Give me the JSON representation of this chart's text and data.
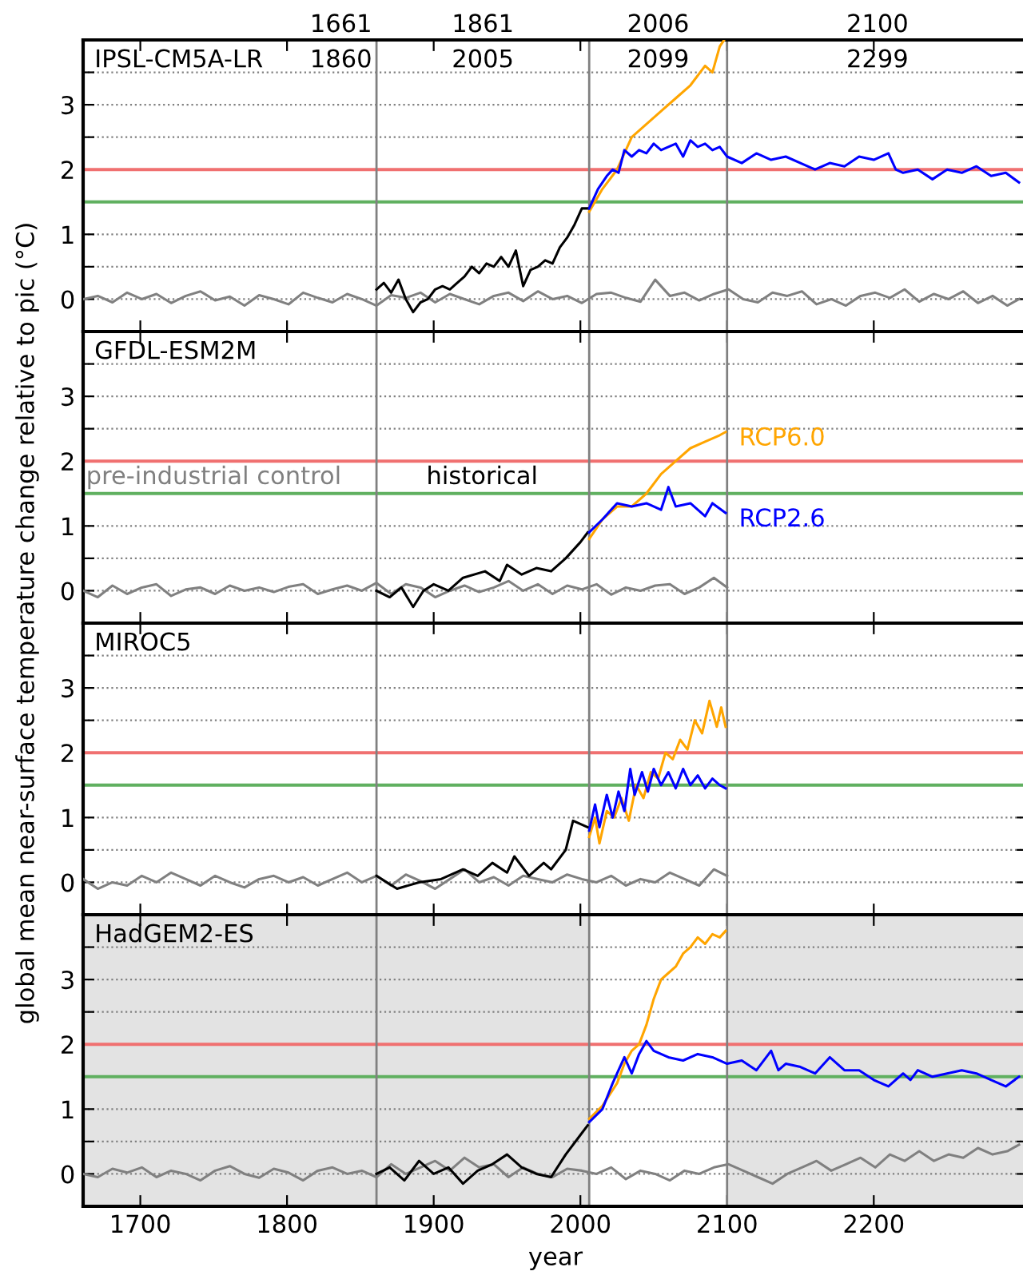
{
  "chart_data": [
    {
      "type": "line",
      "title": "IPSL-CM5A-LR",
      "ylabel": "global mean near-surface temperature change relative to pic (°C)",
      "annotations": [
        "1661",
        "1861",
        "2006",
        "2100",
        "1860",
        "2005",
        "2099",
        "2299"
      ],
      "xlim": [
        1661,
        2305
      ],
      "xticks": [
        1700,
        1800,
        1900,
        2000,
        2100,
        2200
      ],
      "ylim": [
        -0.5,
        4.0
      ],
      "yticks": [
        0,
        {
          "value": 0.5,
          "label": null
        },
        1,
        {
          "value": 1.5,
          "label": null
        },
        2,
        {
          "value": 2.5,
          "label": null
        },
        3,
        {
          "value": 3.5,
          "label": null
        }
      ],
      "grid": "y",
      "tick_labels": "y",
      "line_style": "solid",
      "ref_lines": [
        {
          "axis": "y",
          "value": 2,
          "color": "#f07070"
        },
        {
          "axis": "y",
          "value": 1.5,
          "color": "#60b060"
        },
        {
          "axis": "x",
          "value": 1861,
          "color": "#808080"
        },
        {
          "axis": "x",
          "value": 2006,
          "color": "#808080"
        },
        {
          "axis": "x",
          "value": 2100,
          "color": "#808080"
        }
      ],
      "series": [
        {
          "color": "#808080",
          "x": [
            1661,
            1671,
            1681,
            1691,
            1701,
            1711,
            1721,
            1731,
            1741,
            1751,
            1761,
            1771,
            1781,
            1791,
            1801,
            1811,
            1821,
            1831,
            1841,
            1851,
            1861,
            1871,
            1881,
            1891,
            1901,
            1911,
            1921,
            1931,
            1941,
            1951,
            1961,
            1971,
            1981,
            1991,
            2001,
            2011,
            2021,
            2031,
            2041,
            2051,
            2061,
            2071,
            2081,
            2091,
            2101,
            2111,
            2121,
            2131,
            2141,
            2151,
            2161,
            2171,
            2181,
            2191,
            2201,
            2211,
            2221,
            2231,
            2241,
            2251,
            2261,
            2271,
            2281,
            2291,
            2299
          ],
          "values": [
            0.0,
            0.05,
            -0.05,
            0.1,
            0.0,
            0.08,
            -0.06,
            0.05,
            0.12,
            -0.02,
            0.04,
            -0.1,
            0.06,
            0.0,
            -0.08,
            0.1,
            0.02,
            -0.05,
            0.08,
            0.0,
            -0.1,
            0.06,
            0.02,
            0.1,
            -0.05,
            0.08,
            0.0,
            -0.08,
            0.05,
            0.1,
            -0.03,
            0.12,
            0.0,
            0.05,
            -0.06,
            0.08,
            0.1,
            0.02,
            -0.04,
            0.3,
            0.05,
            0.1,
            -0.02,
            0.08,
            0.15,
            0.0,
            -0.05,
            0.1,
            0.05,
            0.12,
            -0.08,
            0.0,
            -0.1,
            0.05,
            0.1,
            0.02,
            0.15,
            -0.04,
            0.08,
            0.0,
            0.12,
            -0.06,
            0.05,
            -0.1,
            0.0
          ]
        },
        {
          "color": "#000000",
          "x": [
            1861,
            1866,
            1871,
            1876,
            1881,
            1886,
            1891,
            1896,
            1901,
            1906,
            1911,
            1916,
            1921,
            1926,
            1931,
            1936,
            1941,
            1946,
            1951,
            1956,
            1961,
            1966,
            1971,
            1976,
            1981,
            1986,
            1991,
            1996,
            2001,
            2005
          ],
          "values": [
            0.15,
            0.25,
            0.1,
            0.3,
            0.0,
            -0.2,
            -0.05,
            0.0,
            0.15,
            0.2,
            0.15,
            0.25,
            0.35,
            0.5,
            0.4,
            0.55,
            0.5,
            0.65,
            0.5,
            0.75,
            0.2,
            0.45,
            0.5,
            0.6,
            0.55,
            0.8,
            0.95,
            1.15,
            1.4,
            1.4
          ]
        },
        {
          "color": "#ffa500",
          "x": [
            2006,
            2015,
            2025,
            2035,
            2045,
            2055,
            2065,
            2075,
            2085,
            2090,
            2095,
            2098
          ],
          "values": [
            1.35,
            1.7,
            2.0,
            2.5,
            2.7,
            2.9,
            3.1,
            3.3,
            3.6,
            3.5,
            3.9,
            4.0
          ]
        },
        {
          "color": "#0000ff",
          "x": [
            2006,
            2012,
            2018,
            2022,
            2026,
            2030,
            2035,
            2040,
            2045,
            2050,
            2055,
            2060,
            2065,
            2070,
            2075,
            2080,
            2085,
            2090,
            2095,
            2100,
            2110,
            2120,
            2130,
            2140,
            2150,
            2160,
            2170,
            2180,
            2190,
            2200,
            2210,
            2215,
            2220,
            2230,
            2240,
            2250,
            2260,
            2270,
            2280,
            2290,
            2299
          ],
          "values": [
            1.4,
            1.7,
            1.9,
            2.0,
            1.95,
            2.3,
            2.2,
            2.3,
            2.25,
            2.4,
            2.3,
            2.35,
            2.4,
            2.2,
            2.45,
            2.35,
            2.4,
            2.3,
            2.35,
            2.2,
            2.1,
            2.25,
            2.15,
            2.2,
            2.1,
            2.0,
            2.1,
            2.05,
            2.2,
            2.15,
            2.25,
            2.0,
            1.95,
            2.0,
            1.85,
            2.0,
            1.95,
            2.05,
            1.9,
            1.95,
            1.8
          ]
        }
      ]
    },
    {
      "type": "line",
      "title": "GFDL-ESM2M",
      "xlim": [
        1661,
        2305
      ],
      "xticks": [
        1700,
        1800,
        1900,
        2000,
        2100,
        2200
      ],
      "ylim": [
        -0.5,
        4.0
      ],
      "yticks": [
        0,
        {
          "value": 0.5,
          "label": null
        },
        1,
        {
          "value": 1.5,
          "label": null
        },
        2,
        {
          "value": 2.5,
          "label": null
        },
        3,
        {
          "value": 3.5,
          "label": null
        }
      ],
      "grid": "y",
      "tick_labels": "y",
      "line_style": "solid",
      "ref_lines": [
        {
          "axis": "y",
          "value": 2,
          "color": "#f07070"
        },
        {
          "axis": "y",
          "value": 1.5,
          "color": "#60b060"
        },
        {
          "axis": "x",
          "value": 1861,
          "color": "#808080"
        },
        {
          "axis": "x",
          "value": 2006,
          "color": "#808080"
        },
        {
          "axis": "x",
          "value": 2100,
          "color": "#808080"
        }
      ],
      "series": [
        {
          "name": "pre-industrial control",
          "color": "#808080",
          "x": [
            1661,
            1671,
            1681,
            1691,
            1701,
            1711,
            1721,
            1731,
            1741,
            1751,
            1761,
            1771,
            1781,
            1791,
            1801,
            1811,
            1821,
            1831,
            1841,
            1851,
            1861,
            1871,
            1881,
            1891,
            1901,
            1911,
            1921,
            1931,
            1941,
            1951,
            1961,
            1971,
            1981,
            1991,
            2001,
            2011,
            2021,
            2031,
            2041,
            2051,
            2061,
            2071,
            2081,
            2091,
            2100
          ],
          "values": [
            0.0,
            -0.1,
            0.08,
            -0.05,
            0.05,
            0.1,
            -0.08,
            0.02,
            0.05,
            -0.05,
            0.08,
            0.0,
            0.05,
            -0.02,
            0.06,
            0.1,
            -0.05,
            0.02,
            0.08,
            0.0,
            0.12,
            -0.05,
            0.1,
            0.05,
            -0.1,
            0.0,
            0.08,
            -0.02,
            0.05,
            0.15,
            0.0,
            0.1,
            -0.05,
            0.08,
            0.02,
            0.1,
            -0.06,
            0.05,
            0.0,
            0.08,
            0.1,
            -0.05,
            0.05,
            0.2,
            0.05
          ]
        },
        {
          "name": "historical",
          "color": "#000000",
          "x": [
            1861,
            1870,
            1878,
            1886,
            1893,
            1900,
            1910,
            1920,
            1935,
            1945,
            1950,
            1960,
            1970,
            1980,
            1990,
            2000,
            2005
          ],
          "values": [
            0.0,
            -0.1,
            0.05,
            -0.25,
            0.0,
            0.1,
            0.0,
            0.2,
            0.3,
            0.15,
            0.4,
            0.25,
            0.35,
            0.3,
            0.5,
            0.75,
            0.9
          ]
        },
        {
          "name": "RCP6.0",
          "color": "#ffa500",
          "x": [
            2006,
            2015,
            2025,
            2035,
            2045,
            2055,
            2065,
            2075,
            2085,
            2095,
            2099
          ],
          "values": [
            0.8,
            1.1,
            1.3,
            1.3,
            1.5,
            1.8,
            2.0,
            2.2,
            2.3,
            2.4,
            2.45
          ]
        },
        {
          "name": "RCP2.6",
          "color": "#0000ff",
          "x": [
            2006,
            2015,
            2025,
            2035,
            2045,
            2055,
            2060,
            2065,
            2075,
            2085,
            2090,
            2099
          ],
          "values": [
            0.9,
            1.1,
            1.35,
            1.3,
            1.35,
            1.25,
            1.6,
            1.3,
            1.35,
            1.15,
            1.35,
            1.2
          ]
        }
      ]
    },
    {
      "type": "line",
      "title": "MIROC5",
      "xlim": [
        1661,
        2305
      ],
      "xticks": [
        1700,
        1800,
        1900,
        2000,
        2100,
        2200
      ],
      "ylim": [
        -0.5,
        4.0
      ],
      "yticks": [
        0,
        {
          "value": 0.5,
          "label": null
        },
        1,
        {
          "value": 1.5,
          "label": null
        },
        2,
        {
          "value": 2.5,
          "label": null
        },
        3,
        {
          "value": 3.5,
          "label": null
        }
      ],
      "grid": "y",
      "tick_labels": "y",
      "line_style": "solid",
      "ref_lines": [
        {
          "axis": "y",
          "value": 2,
          "color": "#f07070"
        },
        {
          "axis": "y",
          "value": 1.5,
          "color": "#60b060"
        },
        {
          "axis": "x",
          "value": 1861,
          "color": "#808080"
        },
        {
          "axis": "x",
          "value": 2006,
          "color": "#808080"
        },
        {
          "axis": "x",
          "value": 2100,
          "color": "#808080"
        }
      ],
      "series": [
        {
          "color": "#808080",
          "x": [
            1661,
            1671,
            1681,
            1691,
            1701,
            1711,
            1721,
            1731,
            1741,
            1751,
            1761,
            1771,
            1781,
            1791,
            1801,
            1811,
            1821,
            1831,
            1841,
            1851,
            1861,
            1871,
            1881,
            1891,
            1901,
            1911,
            1921,
            1931,
            1941,
            1951,
            1961,
            1971,
            1981,
            1991,
            2001,
            2011,
            2021,
            2031,
            2041,
            2051,
            2061,
            2071,
            2081,
            2091,
            2100
          ],
          "values": [
            0.05,
            -0.1,
            0.0,
            -0.05,
            0.1,
            0.0,
            0.15,
            0.05,
            -0.05,
            0.1,
            0.0,
            -0.08,
            0.05,
            0.1,
            0.0,
            0.08,
            -0.05,
            0.05,
            0.15,
            0.0,
            0.1,
            -0.05,
            0.12,
            0.02,
            -0.1,
            0.05,
            0.2,
            0.0,
            0.08,
            -0.05,
            0.1,
            0.05,
            0.0,
            0.12,
            0.05,
            0.0,
            0.1,
            -0.05,
            0.05,
            0.0,
            0.15,
            0.05,
            -0.05,
            0.2,
            0.1
          ]
        },
        {
          "color": "#000000",
          "x": [
            1861,
            1875,
            1890,
            1905,
            1920,
            1930,
            1940,
            1950,
            1955,
            1965,
            1975,
            1980,
            1990,
            1995,
            2005
          ],
          "values": [
            0.1,
            -0.1,
            0.0,
            0.05,
            0.2,
            0.1,
            0.3,
            0.15,
            0.4,
            0.1,
            0.3,
            0.2,
            0.5,
            0.95,
            0.85
          ]
        },
        {
          "color": "#ffa500",
          "x": [
            2006,
            2010,
            2013,
            2018,
            2023,
            2028,
            2033,
            2038,
            2043,
            2048,
            2053,
            2058,
            2063,
            2068,
            2073,
            2078,
            2083,
            2088,
            2093,
            2096,
            2099
          ],
          "values": [
            0.7,
            1.0,
            0.6,
            1.1,
            1.0,
            1.3,
            0.95,
            1.5,
            1.3,
            1.7,
            1.6,
            2.0,
            1.9,
            2.2,
            2.05,
            2.5,
            2.3,
            2.8,
            2.4,
            2.7,
            2.4
          ]
        },
        {
          "color": "#0000ff",
          "x": [
            2006,
            2010,
            2013,
            2018,
            2022,
            2026,
            2030,
            2034,
            2037,
            2042,
            2046,
            2050,
            2055,
            2060,
            2065,
            2070,
            2075,
            2080,
            2085,
            2090,
            2095,
            2099
          ],
          "values": [
            0.8,
            1.2,
            0.85,
            1.35,
            1.0,
            1.4,
            1.1,
            1.75,
            1.35,
            1.7,
            1.4,
            1.75,
            1.5,
            1.7,
            1.45,
            1.75,
            1.5,
            1.65,
            1.45,
            1.6,
            1.5,
            1.45
          ]
        }
      ]
    },
    {
      "type": "line",
      "title": "HadGEM2-ES",
      "xlabel": "year",
      "xlim": [
        1661,
        2305
      ],
      "xticks": [
        1700,
        1800,
        1900,
        2000,
        2100,
        2200
      ],
      "ylim": [
        -0.5,
        4.0
      ],
      "yticks": [
        0,
        {
          "value": 0.5,
          "label": null
        },
        1,
        {
          "value": 1.5,
          "label": null
        },
        2,
        {
          "value": 2.5,
          "label": null
        },
        3,
        {
          "value": 3.5,
          "label": null
        }
      ],
      "grid": "y",
      "line_style": "solid",
      "bands": [
        {
          "axis": "x",
          "from": 1661,
          "to": 2006,
          "color": "#e3e3e3"
        },
        {
          "axis": "x",
          "from": 2100,
          "to": 2305,
          "color": "#e3e3e3"
        }
      ],
      "ref_lines": [
        {
          "axis": "y",
          "value": 2,
          "color": "#f07070"
        },
        {
          "axis": "y",
          "value": 1.5,
          "color": "#60b060"
        },
        {
          "axis": "x",
          "value": 1861,
          "color": "#808080"
        },
        {
          "axis": "x",
          "value": 2006,
          "color": "#808080"
        },
        {
          "axis": "x",
          "value": 2100,
          "color": "#808080"
        }
      ],
      "series": [
        {
          "color": "#808080",
          "x": [
            1661,
            1671,
            1681,
            1691,
            1701,
            1711,
            1721,
            1731,
            1741,
            1751,
            1761,
            1771,
            1781,
            1791,
            1801,
            1811,
            1821,
            1831,
            1841,
            1851,
            1861,
            1871,
            1881,
            1891,
            1901,
            1911,
            1921,
            1931,
            1941,
            1951,
            1961,
            1971,
            1981,
            1991,
            2001,
            2011,
            2021,
            2031,
            2041,
            2051,
            2061,
            2071,
            2081,
            2091,
            2101,
            2111,
            2121,
            2131,
            2141,
            2151,
            2161,
            2171,
            2181,
            2191,
            2201,
            2211,
            2221,
            2231,
            2241,
            2251,
            2261,
            2271,
            2281,
            2291,
            2299
          ],
          "values": [
            0.0,
            -0.05,
            0.08,
            0.02,
            0.1,
            -0.05,
            0.05,
            0.0,
            -0.1,
            0.05,
            0.12,
            0.0,
            -0.06,
            0.08,
            0.02,
            -0.1,
            0.05,
            0.1,
            0.0,
            0.05,
            -0.05,
            0.15,
            0.0,
            0.1,
            0.2,
            0.05,
            0.25,
            0.1,
            0.15,
            -0.05,
            0.1,
            0.0,
            -0.05,
            0.08,
            0.05,
            0.0,
            0.1,
            -0.08,
            0.05,
            0.0,
            -0.1,
            0.05,
            0.0,
            0.1,
            0.15,
            0.05,
            -0.05,
            -0.15,
            0.0,
            0.1,
            0.2,
            0.05,
            0.15,
            0.25,
            0.1,
            0.3,
            0.2,
            0.35,
            0.2,
            0.3,
            0.25,
            0.4,
            0.3,
            0.35,
            0.45
          ]
        },
        {
          "color": "#000000",
          "x": [
            1861,
            1870,
            1880,
            1890,
            1900,
            1910,
            1920,
            1930,
            1940,
            1950,
            1960,
            1970,
            1980,
            1990,
            2000,
            2005
          ],
          "values": [
            0.0,
            0.1,
            -0.1,
            0.2,
            0.0,
            0.1,
            -0.15,
            0.05,
            0.15,
            0.3,
            0.1,
            0.0,
            -0.05,
            0.3,
            0.6,
            0.75
          ]
        },
        {
          "color": "#ffa500",
          "x": [
            2006,
            2015,
            2025,
            2030,
            2035,
            2040,
            2045,
            2050,
            2055,
            2060,
            2065,
            2070,
            2075,
            2080,
            2085,
            2090,
            2095,
            2099
          ],
          "values": [
            0.85,
            1.05,
            1.4,
            1.7,
            1.9,
            2.0,
            2.3,
            2.7,
            3.0,
            3.1,
            3.2,
            3.4,
            3.5,
            3.65,
            3.55,
            3.7,
            3.65,
            3.75
          ]
        },
        {
          "color": "#0000ff",
          "x": [
            2006,
            2015,
            2022,
            2030,
            2035,
            2040,
            2045,
            2050,
            2055,
            2060,
            2070,
            2080,
            2090,
            2100,
            2110,
            2120,
            2130,
            2135,
            2140,
            2150,
            2160,
            2170,
            2180,
            2190,
            2200,
            2210,
            2220,
            2225,
            2230,
            2240,
            2250,
            2260,
            2270,
            2280,
            2290,
            2299
          ],
          "values": [
            0.8,
            1.0,
            1.4,
            1.8,
            1.55,
            1.85,
            2.05,
            1.9,
            1.85,
            1.8,
            1.75,
            1.85,
            1.8,
            1.7,
            1.75,
            1.6,
            1.9,
            1.6,
            1.7,
            1.65,
            1.55,
            1.8,
            1.6,
            1.6,
            1.45,
            1.35,
            1.55,
            1.45,
            1.6,
            1.5,
            1.55,
            1.6,
            1.55,
            1.45,
            1.35,
            1.5
          ]
        }
      ]
    }
  ]
}
